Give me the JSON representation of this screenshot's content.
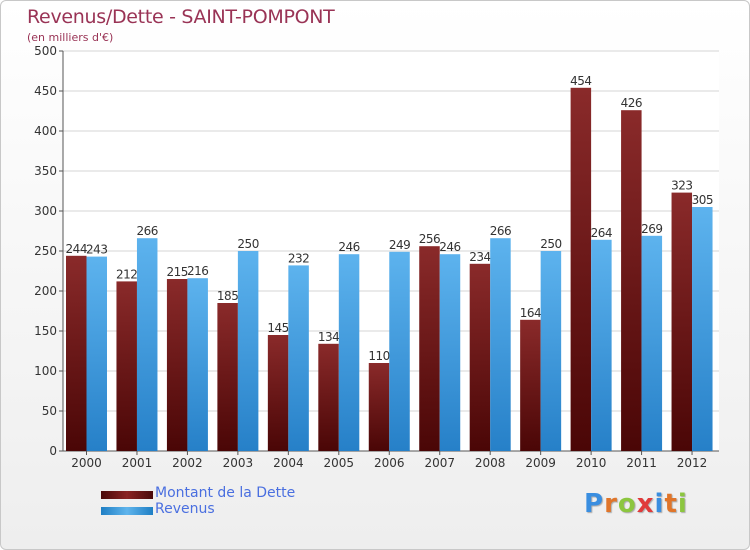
{
  "title": "Revenus/Dette - SAINT-POMPONT",
  "subtitle": "(en milliers d'€)",
  "colors": {
    "title": "#993355",
    "debt": "#7a1a1a",
    "revenue": "#4aa3e0",
    "legend_text": "#4a6fe0"
  },
  "chart_data": {
    "type": "bar",
    "categories": [
      "2000",
      "2001",
      "2002",
      "2003",
      "2004",
      "2005",
      "2006",
      "2007",
      "2008",
      "2009",
      "2010",
      "2011",
      "2012"
    ],
    "series": [
      {
        "name": "Montant de la Dette",
        "values": [
          244,
          212,
          215,
          185,
          145,
          134,
          110,
          256,
          234,
          164,
          454,
          426,
          323
        ]
      },
      {
        "name": "Revenus",
        "values": [
          243,
          266,
          216,
          250,
          232,
          246,
          249,
          246,
          266,
          250,
          264,
          269,
          305
        ]
      }
    ],
    "ylim": [
      0,
      500
    ],
    "yticks": [
      0,
      50,
      100,
      150,
      200,
      250,
      300,
      350,
      400,
      450,
      500
    ],
    "grid": true,
    "legend_position": "bottom-left"
  },
  "legend": {
    "items": [
      {
        "label": "Montant de la Dette"
      },
      {
        "label": "Revenus"
      }
    ]
  },
  "logo": {
    "letters": [
      "P",
      "r",
      "o",
      "x",
      "i",
      "t",
      "i"
    ],
    "colors": [
      "#3a8ee0",
      "#e0752a",
      "#8cc63f",
      "#e03a3a",
      "#3a8ee0",
      "#e0752a",
      "#8cc63f"
    ]
  }
}
